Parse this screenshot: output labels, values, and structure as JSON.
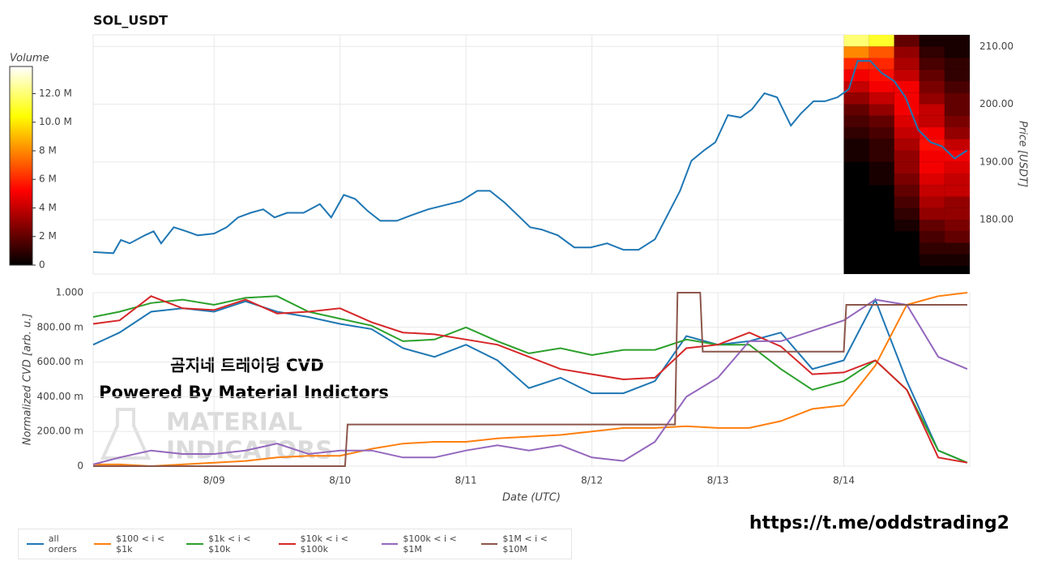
{
  "chart_data": [
    {
      "type": "line",
      "title": "SOL_USDT",
      "y_label": "Price [USDT]",
      "x": [
        8.04,
        8.2,
        8.26,
        8.33,
        8.45,
        8.52,
        8.58,
        8.68,
        8.78,
        8.87,
        9.0,
        9.1,
        9.19,
        9.29,
        9.39,
        9.48,
        9.58,
        9.71,
        9.84,
        9.93,
        10.03,
        10.12,
        10.22,
        10.32,
        10.45,
        10.57,
        10.7,
        10.83,
        10.96,
        11.09,
        11.19,
        11.31,
        11.41,
        11.51,
        11.6,
        11.73,
        11.86,
        11.99,
        12.12,
        12.25,
        12.37,
        12.5,
        12.6,
        12.7,
        12.79,
        12.89,
        12.98,
        13.08,
        13.18,
        13.27,
        13.37,
        13.47,
        13.58,
        13.66,
        13.76,
        13.85,
        13.95,
        14.04,
        14.11,
        14.21,
        14.3,
        14.4,
        14.49,
        14.59,
        14.69,
        14.78,
        14.88,
        14.98
      ],
      "series": [
        {
          "color": "#1f77b4",
          "values": [
            174.4,
            174.2,
            176.5,
            175.9,
            177.3,
            178.0,
            175.9,
            178.7,
            178.0,
            177.3,
            177.6,
            178.7,
            180.4,
            181.2,
            181.8,
            180.4,
            181.2,
            181.2,
            182.7,
            180.4,
            184.3,
            183.6,
            181.5,
            179.8,
            179.8,
            180.8,
            181.8,
            182.5,
            183.2,
            185.0,
            185.0,
            182.9,
            180.8,
            178.7,
            178.3,
            177.3,
            175.2,
            175.2,
            175.9,
            174.8,
            174.8,
            176.6,
            180.8,
            185.0,
            190.2,
            192.0,
            193.4,
            198.1,
            197.7,
            199.1,
            201.9,
            201.2,
            196.3,
            198.4,
            200.5,
            200.5,
            201.2,
            202.6,
            207.5,
            207.5,
            205.4,
            204.0,
            201.2,
            195.6,
            193.4,
            192.7,
            190.6,
            192.0
          ]
        }
      ],
      "xlim": [
        8.04,
        15.0
      ],
      "xticks": [
        9,
        10,
        11,
        12,
        13,
        14
      ],
      "ylim": [
        170.6,
        212
      ],
      "yticks": [
        {
          "value": 180,
          "label": "180.00"
        },
        {
          "value": 190,
          "label": "190.00"
        },
        {
          "value": 200,
          "label": "200.00"
        },
        {
          "value": 210,
          "label": "210.00"
        }
      ],
      "grid": true,
      "heatmap": {
        "x_bins": [
          14.0,
          14.2,
          14.4,
          14.6,
          14.8,
          15.0
        ],
        "y_bins": [
          172,
          174,
          176,
          178,
          180,
          182,
          184,
          186,
          188,
          190,
          192,
          194,
          196,
          198,
          200,
          202,
          204,
          206,
          208,
          210,
          212
        ],
        "values": [
          [
            0,
            0,
            0,
            500000,
            500000
          ],
          [
            0,
            0,
            0,
            1000000,
            1000000
          ],
          [
            0,
            0,
            0,
            1500000,
            2000000
          ],
          [
            0,
            0,
            500000,
            2000000,
            2500000
          ],
          [
            0,
            0,
            1000000,
            3000000,
            3000000
          ],
          [
            0,
            0,
            1500000,
            3500000,
            3000000
          ],
          [
            0,
            0,
            2000000,
            4000000,
            4000000
          ],
          [
            0,
            500000,
            2500000,
            4500000,
            4000000
          ],
          [
            0,
            500000,
            3000000,
            5000000,
            4500000
          ],
          [
            500000,
            1000000,
            3000000,
            5000000,
            5000000
          ],
          [
            500000,
            1000000,
            3500000,
            5500000,
            4000000
          ],
          [
            1000000,
            1500000,
            4000000,
            5000000,
            3000000
          ],
          [
            1500000,
            2000000,
            4500000,
            4000000,
            2500000
          ],
          [
            2000000,
            3000000,
            5000000,
            4000000,
            2000000
          ],
          [
            3000000,
            4000000,
            5000000,
            3000000,
            2000000
          ],
          [
            4000000,
            5000000,
            5000000,
            2500000,
            1500000
          ],
          [
            5000000,
            5500000,
            4000000,
            2000000,
            1000000
          ],
          [
            6000000,
            6000000,
            3500000,
            1500000,
            1000000
          ],
          [
            8000000,
            7000000,
            3000000,
            1000000,
            500000
          ],
          [
            12000000,
            11000000,
            2000000,
            500000,
            500000
          ]
        ],
        "colorbar": {
          "title": "Volume",
          "lim": [
            0,
            13900000
          ],
          "ticks": [
            0,
            {
              "value": 2000000,
              "label": "2 M"
            },
            {
              "value": 4000000,
              "label": "4 M"
            },
            {
              "value": 6000000,
              "label": "6 M"
            },
            {
              "value": 8000000,
              "label": "8 M"
            },
            {
              "value": 10000000,
              "label": "10.0 M"
            },
            {
              "value": 12000000,
              "label": "12.0 M"
            }
          ]
        }
      }
    },
    {
      "type": "line",
      "x_label": "Date (UTC)",
      "y_label": "Normalized CVD [arb. u.]",
      "x": [
        8.04,
        8.25,
        8.5,
        8.75,
        9.0,
        9.25,
        9.5,
        9.75,
        10.0,
        10.25,
        10.5,
        10.75,
        11.0,
        11.25,
        11.5,
        11.75,
        12.0,
        12.25,
        12.5,
        12.75,
        13.0,
        13.25,
        13.5,
        13.75,
        14.0,
        14.25,
        14.5,
        14.75,
        14.98
      ],
      "series": [
        {
          "name": "all orders",
          "color": "#1f77b4",
          "values": [
            0.7,
            0.77,
            0.89,
            0.91,
            0.89,
            0.95,
            0.89,
            0.86,
            0.82,
            0.79,
            0.68,
            0.63,
            0.7,
            0.61,
            0.45,
            0.51,
            0.42,
            0.42,
            0.49,
            0.75,
            0.7,
            0.72,
            0.77,
            0.56,
            0.61,
            0.96,
            0.49,
            0.09,
            0.02
          ]
        },
        {
          "name": "$100 < i < $1k",
          "color": "#ff7f0e",
          "values": [
            0.01,
            0.01,
            0.0,
            0.01,
            0.02,
            0.03,
            0.05,
            0.06,
            0.06,
            0.1,
            0.13,
            0.14,
            0.14,
            0.16,
            0.17,
            0.18,
            0.2,
            0.22,
            0.22,
            0.23,
            0.22,
            0.22,
            0.26,
            0.33,
            0.35,
            0.58,
            0.93,
            0.98,
            1.0
          ]
        },
        {
          "name": "$1k < i < $10k",
          "color": "#2ca02c",
          "values": [
            0.86,
            0.89,
            0.94,
            0.96,
            0.93,
            0.97,
            0.98,
            0.89,
            0.85,
            0.81,
            0.72,
            0.73,
            0.8,
            0.72,
            0.65,
            0.68,
            0.64,
            0.67,
            0.67,
            0.73,
            0.7,
            0.7,
            0.56,
            0.44,
            0.49,
            0.61,
            0.44,
            0.09,
            0.02
          ]
        },
        {
          "name": "$10k < i < $100k",
          "color": "#d62728",
          "values": [
            0.82,
            0.84,
            0.98,
            0.91,
            0.9,
            0.96,
            0.88,
            0.89,
            0.91,
            0.83,
            0.77,
            0.76,
            0.73,
            0.7,
            0.63,
            0.56,
            0.53,
            0.5,
            0.51,
            0.68,
            0.7,
            0.77,
            0.69,
            0.53,
            0.54,
            0.61,
            0.44,
            0.05,
            0.02
          ]
        },
        {
          "name": "$100k < i < $1M",
          "color": "#9467bd",
          "values": [
            0.01,
            0.05,
            0.09,
            0.07,
            0.07,
            0.09,
            0.13,
            0.07,
            0.09,
            0.09,
            0.05,
            0.05,
            0.09,
            0.12,
            0.09,
            0.12,
            0.05,
            0.03,
            0.14,
            0.4,
            0.51,
            0.72,
            0.72,
            0.78,
            0.84,
            0.96,
            0.93,
            0.63,
            0.56
          ]
        },
        {
          "name": "$1M < i < $10M",
          "color": "#8c564b",
          "x": [
            8.04,
            10.04,
            10.06,
            12.66,
            12.68,
            12.86,
            12.88,
            14.0,
            14.02,
            14.98
          ],
          "values": [
            0,
            0,
            0.24,
            0.24,
            1.0,
            1.0,
            0.66,
            0.66,
            0.93,
            0.93
          ]
        }
      ],
      "xlim": [
        8.04,
        15.0
      ],
      "xticks": [
        {
          "value": 9,
          "label": "8/09"
        },
        {
          "value": 10,
          "label": "8/10"
        },
        {
          "value": 11,
          "label": "8/11"
        },
        {
          "value": 12,
          "label": "8/12"
        },
        {
          "value": 13,
          "label": "8/13"
        },
        {
          "value": 14,
          "label": "8/14"
        }
      ],
      "ylim": [
        0,
        1
      ],
      "yticks": [
        0,
        {
          "value": 0.2,
          "label": "200.00 m"
        },
        {
          "value": 0.4,
          "label": "400.00 m"
        },
        {
          "value": 0.6,
          "label": "600.00 m"
        },
        {
          "value": 0.8,
          "label": "800.00 m"
        },
        {
          "value": 1,
          "label": "1.000"
        }
      ],
      "grid": true,
      "legend": "bottom"
    }
  ],
  "overlay": {
    "heading": "곰지네 트레이딩 CVD",
    "subheading": "Powered By Material Indictors",
    "watermark": [
      "MATERIAL",
      "INDICATORS"
    ]
  },
  "footer_link": "https://t.me/oddstrading2"
}
